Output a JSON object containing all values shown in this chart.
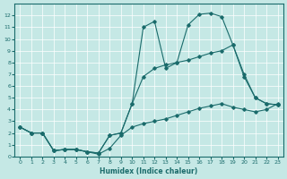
{
  "bg_color": "#c5e8e5",
  "line_color": "#1a6b6b",
  "xlabel": "Humidex (Indice chaleur)",
  "xlim": [
    -0.5,
    23.5
  ],
  "ylim": [
    0,
    13
  ],
  "curve1_x": [
    0,
    1,
    2,
    3,
    4,
    5,
    6,
    7,
    8,
    9,
    10,
    11,
    12,
    13,
    14,
    15,
    16,
    17,
    18,
    19,
    20,
    21,
    22,
    23
  ],
  "curve1_y": [
    2.5,
    2.0,
    2.0,
    0.5,
    0.6,
    0.6,
    0.4,
    0.2,
    0.7,
    1.8,
    2.5,
    2.8,
    3.0,
    3.2,
    3.5,
    3.8,
    4.1,
    4.3,
    4.5,
    4.2,
    4.0,
    3.8,
    4.0,
    4.5
  ],
  "curve2_x": [
    0,
    1,
    2,
    3,
    4,
    5,
    6,
    7,
    8,
    9,
    10,
    11,
    12,
    13,
    14,
    15,
    16,
    17,
    18,
    19,
    20,
    21,
    22,
    23
  ],
  "curve2_y": [
    2.5,
    2.0,
    2.0,
    0.5,
    0.6,
    0.6,
    0.4,
    0.3,
    1.8,
    2.0,
    4.5,
    6.8,
    7.5,
    7.8,
    8.0,
    8.2,
    8.5,
    8.8,
    9.0,
    9.5,
    7.0,
    5.0,
    4.5,
    4.4
  ],
  "curve3_x": [
    0,
    1,
    2,
    3,
    4,
    5,
    6,
    7,
    8,
    9,
    10,
    11,
    12,
    13,
    14,
    15,
    16,
    17,
    18,
    19,
    20,
    21,
    22,
    23
  ],
  "curve3_y": [
    2.5,
    2.0,
    2.0,
    0.5,
    0.6,
    0.6,
    0.4,
    0.3,
    1.8,
    2.0,
    4.5,
    11.0,
    11.5,
    7.5,
    8.0,
    11.2,
    12.1,
    12.2,
    11.9,
    9.5,
    6.8,
    5.0,
    4.5,
    4.4
  ]
}
